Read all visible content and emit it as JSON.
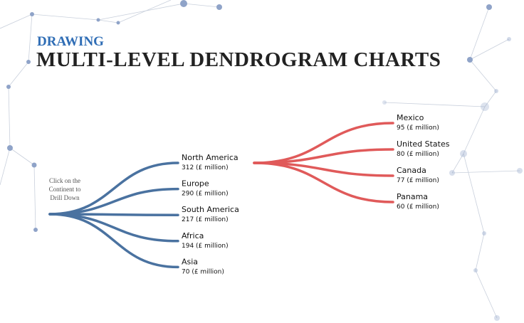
{
  "chart_data": {
    "type": "dendrogram",
    "subtitle": "DRAWING",
    "title": "MULTI-LEVEL  DENDROGRAM  CHARTS",
    "annotation": "Click on the Continent to Drill Down",
    "levels": [
      {
        "color": "#4a72a0",
        "categories": [
          "North America",
          "Europe",
          "South America",
          "Africa",
          "Asia"
        ],
        "values": [
          312,
          290,
          217,
          194,
          70
        ],
        "value_labels": [
          "312 (£ million)",
          "290 (£ million)",
          "217 (£ million)",
          "194 (£ million)",
          "70 (£ million)"
        ]
      },
      {
        "color": "#e05a5a",
        "categories": [
          "Mexico",
          "United States",
          "Canada",
          "Panama"
        ],
        "values": [
          95,
          80,
          77,
          60
        ],
        "value_labels": [
          "95 (£ million)",
          "80 (£ million)",
          "77 (£ million)",
          "60 (£ million)"
        ]
      }
    ]
  }
}
